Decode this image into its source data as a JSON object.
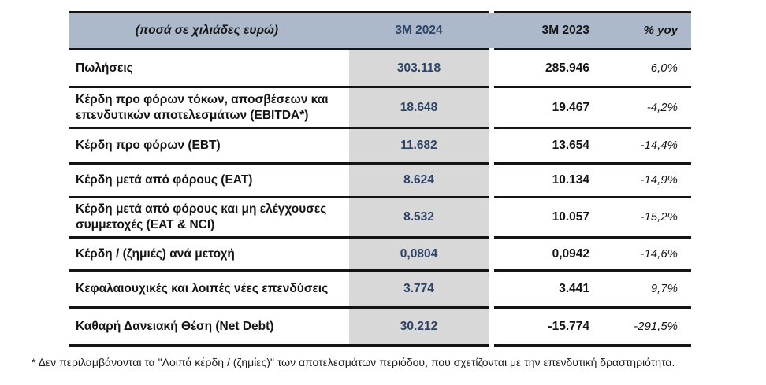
{
  "table": {
    "header": {
      "units_label": "(ποσά σε χιλιάδες ευρώ)",
      "col_2024": "3M 2024",
      "col_2023": "3M 2023",
      "col_yoy": "% yoy"
    },
    "rows": [
      {
        "label": "Πωλήσεις",
        "v2024": "303.118",
        "v2023": "285.946",
        "yoy": "6,0%"
      },
      {
        "label": "Κέρδη προ φόρων τόκων, αποσβέσεων και επενδυτικών αποτελεσμάτων (EBITDA*)",
        "v2024": "18.648",
        "v2023": "19.467",
        "yoy": "-4,2%"
      },
      {
        "label": "Κέρδη προ φόρων (EBT)",
        "v2024": "11.682",
        "v2023": "13.654",
        "yoy": "-14,4%"
      },
      {
        "label": "Κέρδη μετά από φόρους (EAT)",
        "v2024": "8.624",
        "v2023": "10.134",
        "yoy": "-14,9%"
      },
      {
        "label": "Κέρδη μετά από φόρους και μη ελέγχουσες συμμετοχές (EAT & NCI)",
        "v2024": "8.532",
        "v2023": "10.057",
        "yoy": "-15,2%"
      },
      {
        "label": "Κέρδη / (ζημιές) ανά μετοχή",
        "v2024": "0,0804",
        "v2023": "0,0942",
        "yoy": "-14,6%"
      },
      {
        "label": "Κεφαλαιουχικές και λοιπές νέες επενδύσεις",
        "v2024": "3.774",
        "v2023": "3.441",
        "yoy": "9,7%"
      },
      {
        "label": "Καθαρή Δανειακή Θέση (Net Debt)",
        "v2024": "30.212",
        "v2023": "-15.774",
        "yoy": "-291,5%"
      }
    ]
  },
  "footnote": "* Δεν περιλαμβάνονται τα \"Λοιπά κέρδη / (ζημίες)\" των αποτελεσμάτων περιόδου, που σχετίζονται με την επενδυτική δραστηριότητα.",
  "colors": {
    "header_bg": "#acb9ca",
    "col_2024_bg": "#d8d8d8",
    "accent_navy": "#2c4365",
    "border": "#141414"
  }
}
